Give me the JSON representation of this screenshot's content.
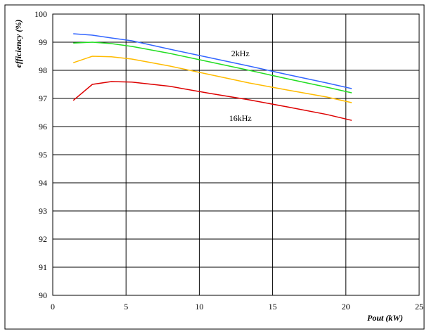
{
  "chart_data": {
    "type": "line",
    "title": "",
    "xlabel": "Pout (kW)",
    "ylabel": "efficiency (%)",
    "xlim": [
      0,
      25
    ],
    "ylim": [
      90,
      100
    ],
    "xticks": [
      0,
      5,
      10,
      15,
      20,
      25
    ],
    "yticks": [
      90,
      91,
      92,
      93,
      94,
      95,
      96,
      97,
      98,
      99,
      100
    ],
    "grid": true,
    "annotations": [
      {
        "text": "2kHz",
        "x": 12.8,
        "y": 98.6
      },
      {
        "text": "16kHz",
        "x": 12.8,
        "y": 96.3
      }
    ],
    "series": [
      {
        "color": "#3366ff",
        "x": [
          1.4,
          2.7,
          4.0,
          5.4,
          8.0,
          10.7,
          13.4,
          16.0,
          18.7,
          20.4
        ],
        "y": [
          99.3,
          99.25,
          99.15,
          99.05,
          98.75,
          98.45,
          98.15,
          97.85,
          97.55,
          97.35
        ]
      },
      {
        "color": "#22dd22",
        "x": [
          1.4,
          2.7,
          4.0,
          5.4,
          8.0,
          10.7,
          13.4,
          16.0,
          18.7,
          20.4
        ],
        "y": [
          98.97,
          99.0,
          98.95,
          98.85,
          98.6,
          98.3,
          98.0,
          97.7,
          97.4,
          97.2
        ]
      },
      {
        "color": "#ffbb00",
        "x": [
          1.4,
          2.7,
          4.0,
          5.4,
          8.0,
          10.7,
          13.4,
          16.0,
          18.7,
          20.4
        ],
        "y": [
          98.27,
          98.5,
          98.48,
          98.4,
          98.15,
          97.85,
          97.55,
          97.3,
          97.05,
          96.85
        ]
      },
      {
        "color": "#dd0000",
        "x": [
          1.4,
          2.7,
          4.0,
          5.4,
          8.0,
          10.7,
          13.4,
          16.0,
          18.7,
          20.4
        ],
        "y": [
          96.93,
          97.5,
          97.6,
          97.58,
          97.43,
          97.18,
          96.95,
          96.7,
          96.43,
          96.22
        ]
      }
    ]
  }
}
